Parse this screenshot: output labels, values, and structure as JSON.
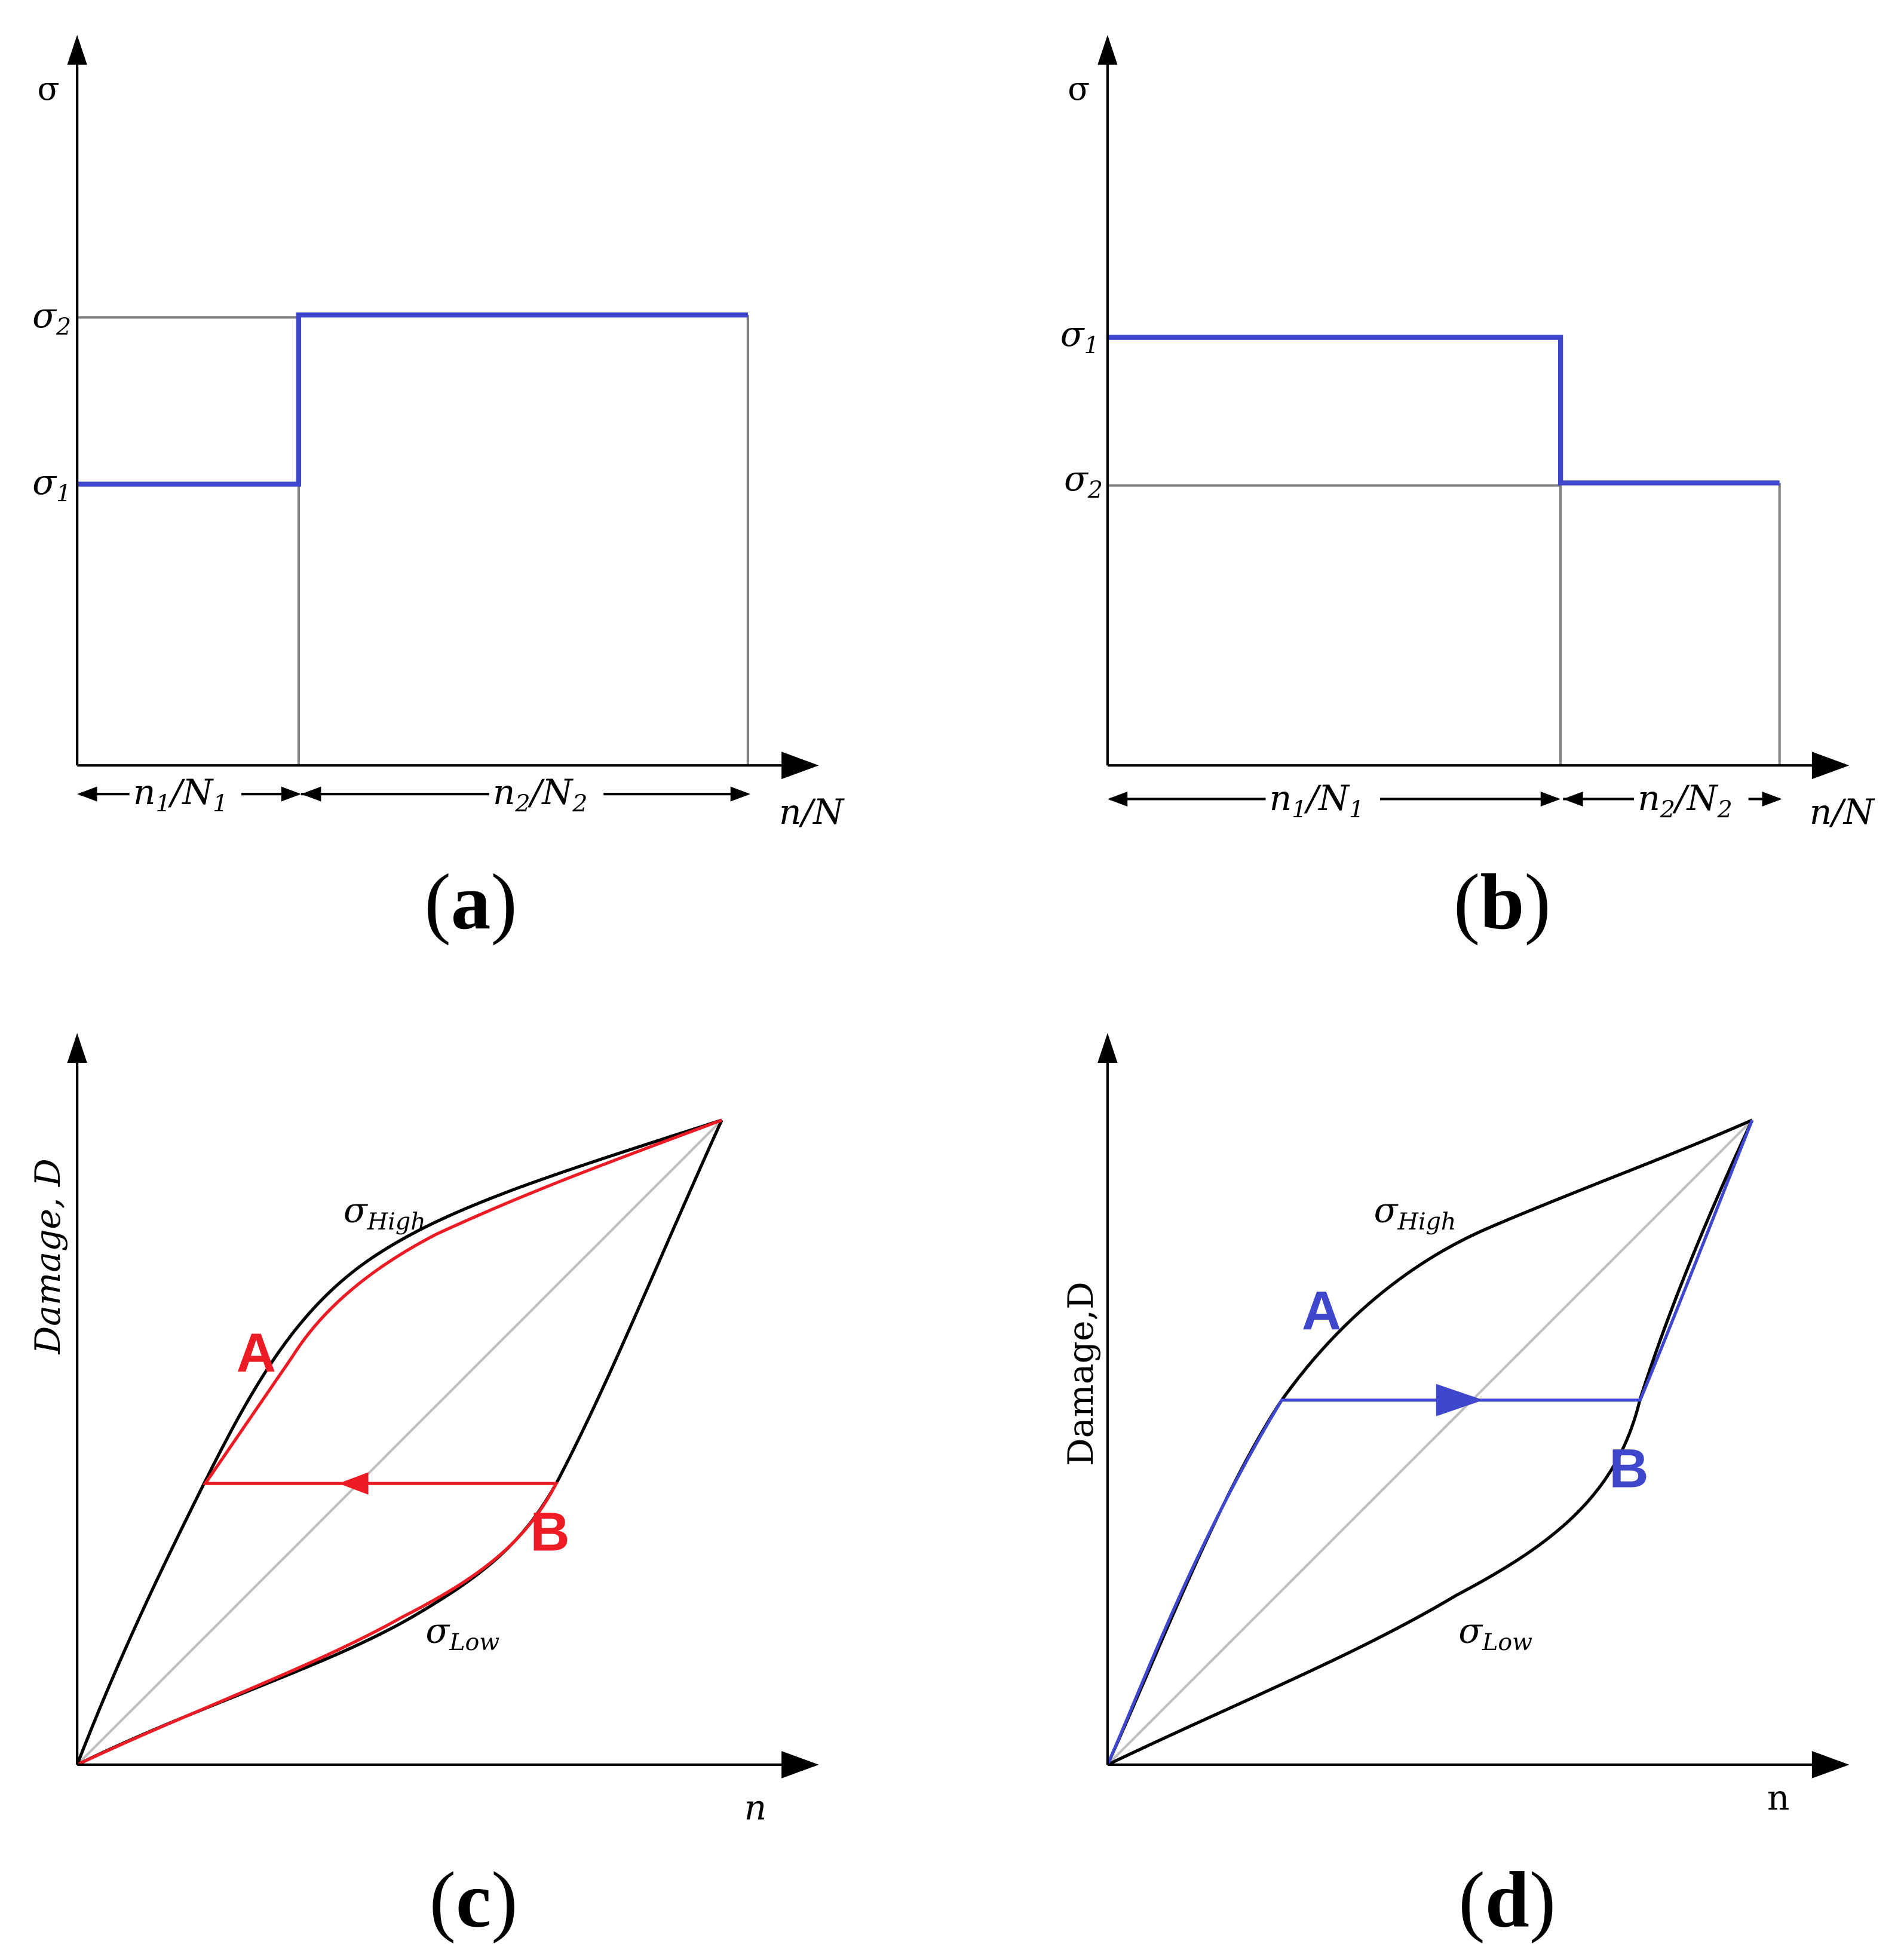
{
  "colors": {
    "axis": "#000000",
    "grid": "#808080",
    "stress_line": "#3f48cc",
    "red_path": "#ed1c24",
    "blue_path": "#3f48cc",
    "diagonal": "#c0c0c0"
  },
  "panel_a": {
    "caption_open": "(",
    "caption_letter": "a",
    "caption_close": ")",
    "y_axis_label": "σ",
    "x_axis_label": "n/N",
    "tick_sigma_upper": "σ",
    "tick_sigma_upper_sub": "2",
    "tick_sigma_lower": "σ",
    "tick_sigma_lower_sub": "1",
    "span_1_label": "n",
    "span_1_sub": "1",
    "span_1_den": "/N",
    "span_1_den_sub": "1",
    "span_2_label": "n",
    "span_2_sub": "2",
    "span_2_den": "/N",
    "span_2_den_sub": "2",
    "sequence": "low-high"
  },
  "panel_b": {
    "caption_open": "(",
    "caption_letter": "b",
    "caption_close": ")",
    "y_axis_label": "σ",
    "x_axis_label": "n/N",
    "tick_sigma_upper": "σ",
    "tick_sigma_upper_sub": "1",
    "tick_sigma_lower": "σ",
    "tick_sigma_lower_sub": "2",
    "span_1_label": "n",
    "span_1_sub": "1",
    "span_1_den": "/N",
    "span_1_den_sub": "1",
    "span_2_label": "n",
    "span_2_sub": "2",
    "span_2_den": "/N",
    "span_2_den_sub": "2",
    "sequence": "high-low"
  },
  "panel_c": {
    "caption_open": "(",
    "caption_letter": "c",
    "caption_close": ")",
    "y_axis_label": "Damage, D",
    "x_axis_label": "n",
    "curve_high": "σ",
    "curve_high_sub": "High",
    "curve_low": "σ",
    "curve_low_sub": "Low",
    "point_a": "A",
    "point_b": "B",
    "transfer_direction": "left"
  },
  "panel_d": {
    "caption_open": "(",
    "caption_letter": "d",
    "caption_close": ")",
    "y_axis_label": "Damage,D",
    "x_axis_label": "n",
    "curve_high": "σ",
    "curve_high_sub": "High",
    "curve_low": "σ",
    "curve_low_sub": "Low",
    "point_a": "A",
    "point_b": "B",
    "transfer_direction": "right"
  }
}
